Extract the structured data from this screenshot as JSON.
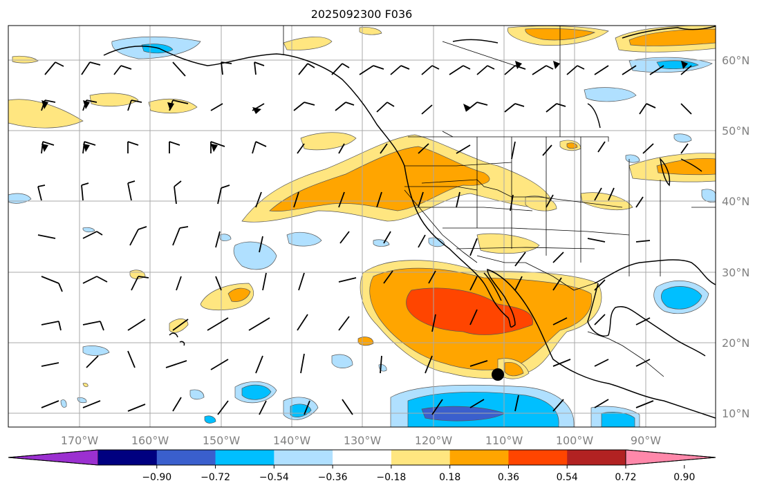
{
  "title": "2025092300 F036",
  "map": {
    "lon_labels": [
      "170°W",
      "160°W",
      "150°W",
      "140°W",
      "130°W",
      "120°W",
      "110°W",
      "100°W",
      "90°W"
    ],
    "lat_labels": [
      "60°N",
      "50°N",
      "40°N",
      "30°N",
      "20°N",
      "10°N"
    ]
  },
  "colorbar": {
    "ticks": [
      "−0.90",
      "−0.72",
      "−0.54",
      "−0.36",
      "−0.18",
      "0.18",
      "0.36",
      "0.54",
      "0.72",
      "0.90"
    ],
    "colors": [
      "#9b30d0",
      "#000080",
      "#3a5fcd",
      "#00bfff",
      "#b0e0ff",
      "#ffffff",
      "#ffe680",
      "#ffa500",
      "#ff4500",
      "#b22222",
      "#ff88aa"
    ]
  },
  "colors": {
    "grid": "#a8a8a8",
    "coast": "#000000",
    "axis_text": "#808080",
    "marker": "#000000"
  }
}
